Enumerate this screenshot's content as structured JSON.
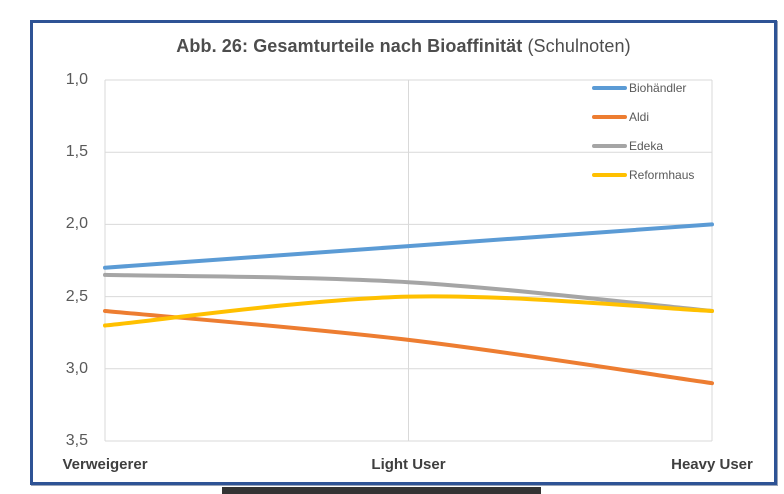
{
  "title": {
    "bold": "Abb. 26: Gesamturteile nach Bioaffinität",
    "normal": " (Schulnoten)"
  },
  "chart_data": {
    "type": "line",
    "title": "Abb. 26: Gesamturteile nach Bioaffinität (Schulnoten)",
    "categories": [
      "Verweigerer",
      "Light User",
      "Heavy User"
    ],
    "series": [
      {
        "name": "Biohändler",
        "color": "#5B9BD5",
        "values": [
          2.3,
          2.15,
          2.0
        ]
      },
      {
        "name": "Aldi",
        "color": "#ED7D31",
        "values": [
          2.6,
          2.8,
          3.1
        ]
      },
      {
        "name": "Edeka",
        "color": "#A5A5A5",
        "values": [
          2.35,
          2.4,
          2.6
        ]
      },
      {
        "name": "Reformhaus",
        "color": "#FFC000",
        "values": [
          2.7,
          2.5,
          2.6
        ]
      }
    ],
    "y_axis": {
      "min": 1.0,
      "max": 3.5,
      "step": 0.5,
      "inverted": true,
      "ticks": [
        {
          "value": 1.0,
          "label": "1,0"
        },
        {
          "value": 1.5,
          "label": "1,5"
        },
        {
          "value": 2.0,
          "label": "2,0"
        },
        {
          "value": 2.5,
          "label": "2,5"
        },
        {
          "value": 3.0,
          "label": "3,0"
        },
        {
          "value": 3.5,
          "label": "3,5"
        }
      ]
    },
    "grid": true,
    "smoothed": true,
    "legend_position": "inside-top-right"
  },
  "colors": {
    "frame_border": "#2E5395",
    "gridline": "#D9D9D9",
    "axis_text": "#595959",
    "category_text": "#3F3F3F",
    "title_text": "#4D4D4D",
    "bottom_bar": "#333333",
    "plot_background": "#FFFFFF"
  }
}
